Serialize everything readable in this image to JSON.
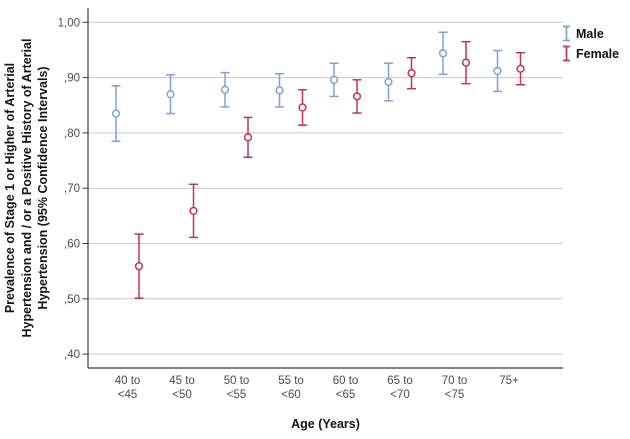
{
  "chart_data": {
    "type": "errorbar",
    "title": "",
    "xlabel": "Age (Years)",
    "ylabel": "Prevalence of Stage 1 or Higher of Arterial Hypertension and / or a Positive History of Arterial Hypertension (95% Confidence Intervals)",
    "ylabel_lines": [
      "Prevalence of Stage 1 or Higher of Arterial",
      "Hypertension and / or a Positive History of Arterial",
      "Hypertension (95% Confidence Intervals)"
    ],
    "categories": [
      [
        "40 to",
        "<45"
      ],
      [
        "45 to",
        "<50"
      ],
      [
        "50 to",
        "<55"
      ],
      [
        "55 to",
        "<60"
      ],
      [
        "60 to",
        "<65"
      ],
      [
        "65 to",
        "<70"
      ],
      [
        "70 to",
        "<75"
      ],
      [
        "75+"
      ]
    ],
    "y_ticks": [
      {
        "label": "1,00",
        "value": 1.0
      },
      {
        "label": ",90",
        "value": 0.9
      },
      {
        "label": ",80",
        "value": 0.8
      },
      {
        "label": ",70",
        "value": 0.7
      },
      {
        "label": ",60",
        "value": 0.6
      },
      {
        "label": ",50",
        "value": 0.5
      },
      {
        "label": ",40",
        "value": 0.4
      }
    ],
    "ylim": [
      0.375,
      1.026
    ],
    "grid": "horizontal",
    "legend_position": "top-right",
    "series": [
      {
        "name": "Male",
        "color": "#7CA2D6",
        "points": [
          {
            "value": 0.835,
            "lo": 0.785,
            "hi": 0.885
          },
          {
            "value": 0.87,
            "lo": 0.835,
            "hi": 0.905
          },
          {
            "value": 0.878,
            "lo": 0.847,
            "hi": 0.909
          },
          {
            "value": 0.877,
            "lo": 0.847,
            "hi": 0.907
          },
          {
            "value": 0.896,
            "lo": 0.866,
            "hi": 0.926
          },
          {
            "value": 0.892,
            "lo": 0.858,
            "hi": 0.926
          },
          {
            "value": 0.944,
            "lo": 0.906,
            "hi": 0.982
          },
          {
            "value": 0.912,
            "lo": 0.875,
            "hi": 0.949
          }
        ]
      },
      {
        "name": "Female",
        "color": "#C43252",
        "points": [
          {
            "value": 0.559,
            "lo": 0.501,
            "hi": 0.617
          },
          {
            "value": 0.659,
            "lo": 0.611,
            "hi": 0.707
          },
          {
            "value": 0.792,
            "lo": 0.756,
            "hi": 0.828
          },
          {
            "value": 0.846,
            "lo": 0.814,
            "hi": 0.878
          },
          {
            "value": 0.866,
            "lo": 0.836,
            "hi": 0.896
          },
          {
            "value": 0.908,
            "lo": 0.88,
            "hi": 0.936
          },
          {
            "value": 0.927,
            "lo": 0.889,
            "hi": 0.965
          },
          {
            "value": 0.916,
            "lo": 0.887,
            "hi": 0.945
          }
        ]
      }
    ],
    "colors": {
      "male": "#7CA2D6",
      "female": "#C43252",
      "gridline": "#C9C9C9",
      "axis": "#3A3A3A",
      "tick_label": "#4B4B4B",
      "title_text": "#141414"
    }
  }
}
